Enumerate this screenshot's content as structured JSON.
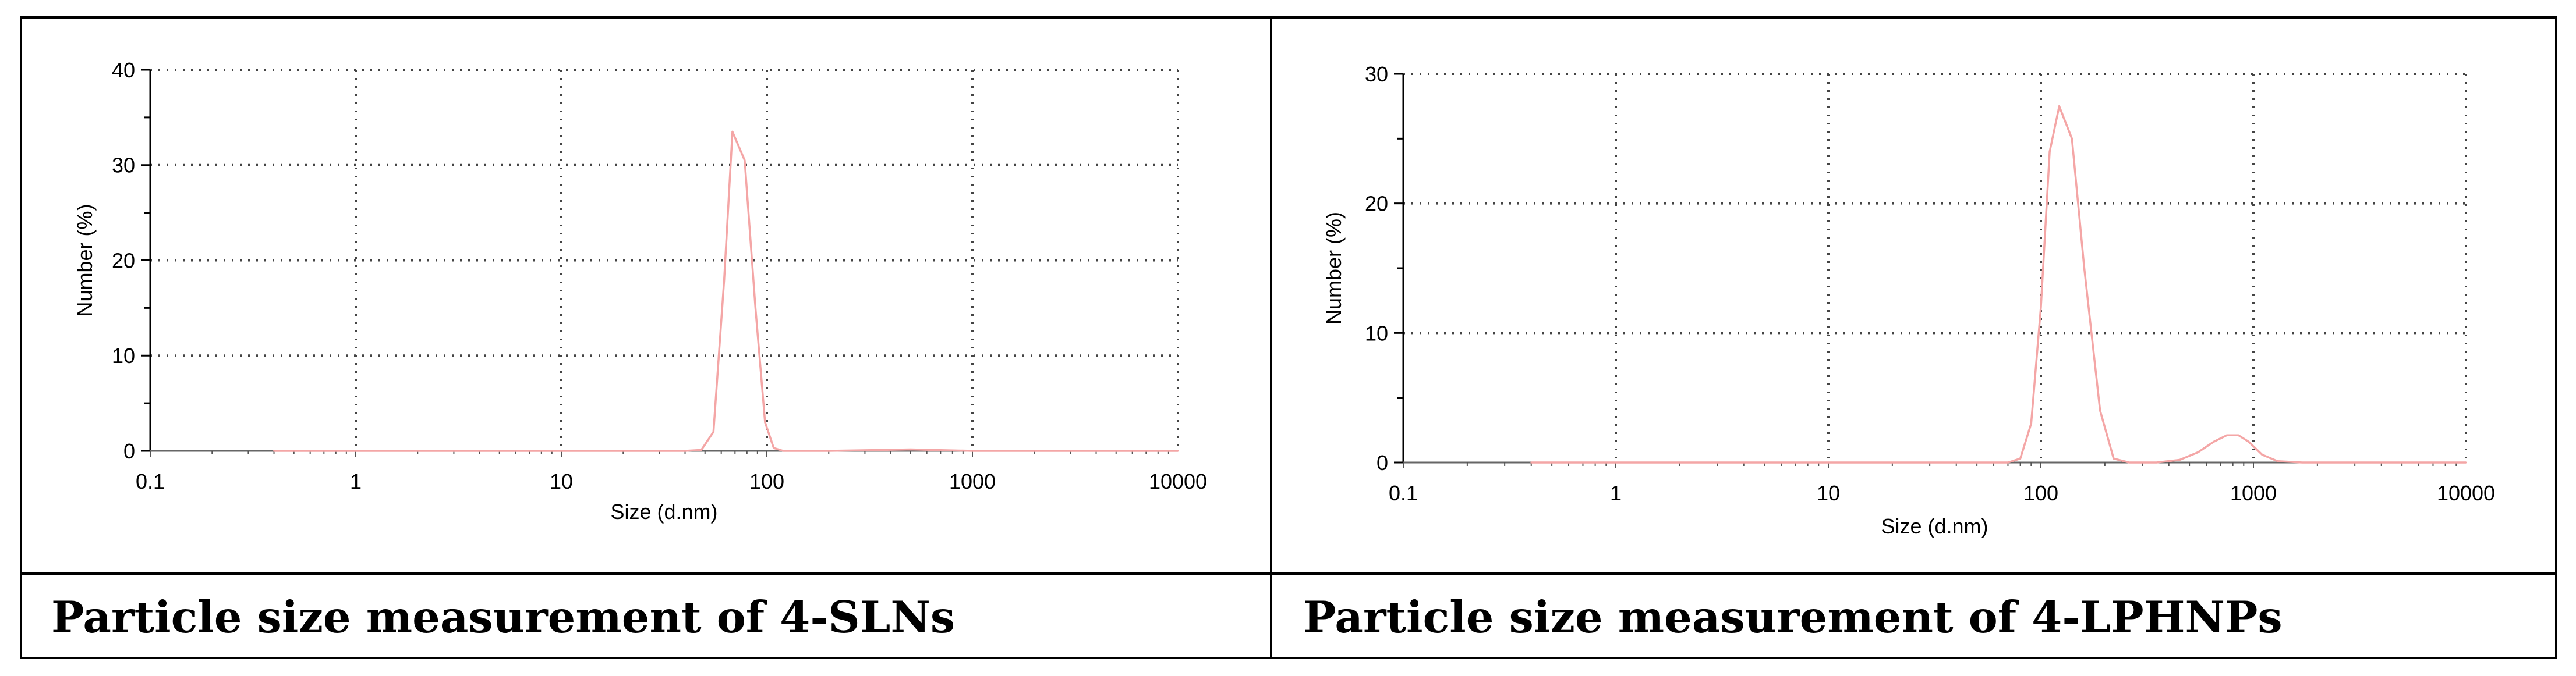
{
  "captions": {
    "left": "Particle size measurement of 4-SLNs",
    "right": "Particle size measurement of 4-LPHNPs"
  },
  "colors": {
    "line": "#f4a6a6",
    "grid": "#444444",
    "axis": "#000000"
  },
  "chart_data": [
    {
      "type": "line",
      "name": "chart-left",
      "xscale": "log",
      "xlabel": "Size (d.nm)",
      "ylabel": "Number (%)",
      "xlim": [
        0.1,
        10000
      ],
      "ylim": [
        0,
        40
      ],
      "x_ticks": [
        0.1,
        1,
        10,
        100,
        1000,
        10000
      ],
      "x_tick_labels": [
        "0.1",
        "1",
        "10",
        "100",
        "1000",
        "10000"
      ],
      "y_ticks": [
        0,
        10,
        20,
        30,
        40
      ],
      "y_tick_labels": [
        "0",
        "10",
        "20",
        "30",
        "40"
      ],
      "series": [
        {
          "name": "4-SLNs",
          "x": [
            0.4,
            1,
            10,
            40,
            48,
            55,
            62,
            68,
            78,
            88,
            98,
            108,
            120,
            200,
            500,
            1000,
            10000
          ],
          "y": [
            0,
            0,
            0,
            0,
            0.1,
            2,
            18,
            33.5,
            30.5,
            15,
            3,
            0.3,
            0,
            0,
            0.15,
            0,
            0
          ]
        }
      ]
    },
    {
      "type": "line",
      "name": "chart-right",
      "xscale": "log",
      "xlabel": "Size (d.nm)",
      "ylabel": "Number (%)",
      "xlim": [
        0.1,
        10000
      ],
      "ylim": [
        0,
        30
      ],
      "x_ticks": [
        0.1,
        1,
        10,
        100,
        1000,
        10000
      ],
      "x_tick_labels": [
        "0.1",
        "1",
        "10",
        "100",
        "1000",
        "10000"
      ],
      "y_ticks": [
        0,
        10,
        20,
        30
      ],
      "y_tick_labels": [
        "0",
        "10",
        "20",
        "30"
      ],
      "series": [
        {
          "name": "4-LPHNPs",
          "x": [
            0.4,
            1,
            10,
            70,
            80,
            90,
            100,
            110,
            122,
            140,
            160,
            190,
            220,
            260,
            350,
            450,
            550,
            650,
            750,
            850,
            950,
            1100,
            1300,
            1700,
            10000
          ],
          "y": [
            0,
            0,
            0,
            0,
            0.3,
            3,
            12,
            24,
            27.5,
            25,
            15,
            4,
            0.3,
            0,
            0,
            0.2,
            0.8,
            1.6,
            2.1,
            2.1,
            1.6,
            0.6,
            0.1,
            0,
            0
          ]
        }
      ]
    }
  ]
}
